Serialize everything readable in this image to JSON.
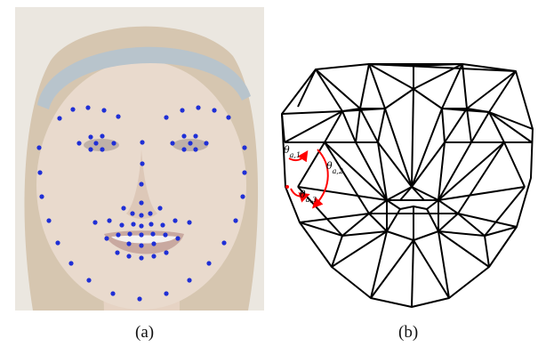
{
  "panel_a": {
    "caption": "(a)",
    "colors": {
      "background": "#ebe7e0",
      "hair": "#d3c3ad",
      "skin": "#e7d6c8",
      "headband": "#b8c4cc",
      "landmark": "#1f2fd6"
    }
  },
  "panel_b": {
    "caption": "(b)",
    "colors": {
      "edge": "#000000",
      "angle_arc": "#ff0000"
    },
    "angles": [
      {
        "label": "θa,1",
        "base": "θ",
        "sub": "a,1"
      },
      {
        "label": "θa,2",
        "base": "θ",
        "sub": "a,2"
      },
      {
        "label": "θa,3",
        "base": "θ",
        "sub": "a,3"
      }
    ]
  }
}
